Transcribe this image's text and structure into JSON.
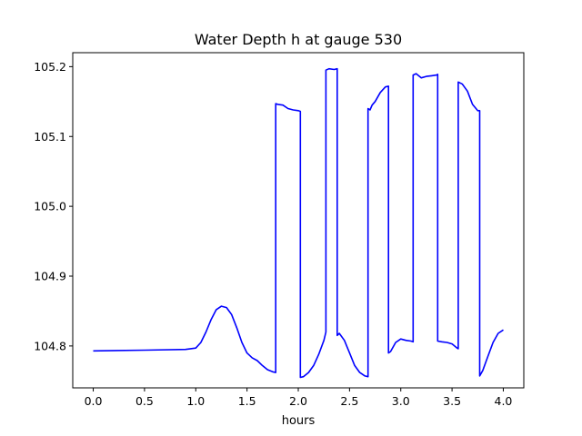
{
  "chart_data": {
    "type": "line",
    "title": "Water Depth h at gauge 530",
    "xlabel": "hours",
    "ylabel": "",
    "xlim": [
      -0.2,
      4.2
    ],
    "ylim": [
      104.74,
      105.22
    ],
    "xticks": [
      0.0,
      0.5,
      1.0,
      1.5,
      2.0,
      2.5,
      3.0,
      3.5,
      4.0
    ],
    "xtick_labels": [
      "0.0",
      "0.5",
      "1.0",
      "1.5",
      "2.0",
      "2.5",
      "3.0",
      "3.5",
      "4.0"
    ],
    "yticks": [
      104.8,
      104.9,
      105.0,
      105.1,
      105.2
    ],
    "ytick_labels": [
      "104.8",
      "104.9",
      "105.0",
      "105.1",
      "105.2"
    ],
    "grid": false,
    "series": [
      {
        "color": "#0000ff",
        "x": [
          0.0,
          0.5,
          0.9,
          1.0,
          1.05,
          1.1,
          1.15,
          1.2,
          1.25,
          1.3,
          1.35,
          1.4,
          1.45,
          1.5,
          1.55,
          1.6,
          1.65,
          1.7,
          1.75,
          1.78,
          1.78,
          1.8,
          1.85,
          1.9,
          1.95,
          2.0,
          2.02,
          2.02,
          2.05,
          2.1,
          2.15,
          2.2,
          2.25,
          2.27,
          2.27,
          2.3,
          2.35,
          2.38,
          2.38,
          2.4,
          2.45,
          2.5,
          2.55,
          2.6,
          2.65,
          2.68,
          2.68,
          2.7,
          2.72,
          2.75,
          2.8,
          2.85,
          2.88,
          2.88,
          2.9,
          2.95,
          3.0,
          3.05,
          3.1,
          3.12,
          3.12,
          3.15,
          3.2,
          3.25,
          3.3,
          3.35,
          3.36,
          3.36,
          3.4,
          3.45,
          3.5,
          3.55,
          3.56,
          3.56,
          3.6,
          3.65,
          3.7,
          3.75,
          3.77,
          3.77,
          3.8,
          3.85,
          3.9,
          3.95,
          4.0
        ],
        "y": [
          104.793,
          104.794,
          104.795,
          104.797,
          104.805,
          104.82,
          104.838,
          104.852,
          104.857,
          104.855,
          104.845,
          104.826,
          104.805,
          104.79,
          104.783,
          104.779,
          104.772,
          104.766,
          104.763,
          104.762,
          105.147,
          105.146,
          105.145,
          105.14,
          105.138,
          105.137,
          105.136,
          104.755,
          104.756,
          104.762,
          104.772,
          104.788,
          104.808,
          104.82,
          105.195,
          105.197,
          105.196,
          105.197,
          104.815,
          104.818,
          104.808,
          104.79,
          104.772,
          104.762,
          104.757,
          104.756,
          105.14,
          105.138,
          105.145,
          105.15,
          105.163,
          105.171,
          105.172,
          104.79,
          104.792,
          104.805,
          104.81,
          104.808,
          104.807,
          104.806,
          105.188,
          105.19,
          105.184,
          105.186,
          105.187,
          105.188,
          105.189,
          104.807,
          104.806,
          104.805,
          104.803,
          104.797,
          104.796,
          105.178,
          105.175,
          105.165,
          105.146,
          105.137,
          105.137,
          104.757,
          104.765,
          104.785,
          104.805,
          104.818,
          104.823
        ]
      }
    ]
  }
}
